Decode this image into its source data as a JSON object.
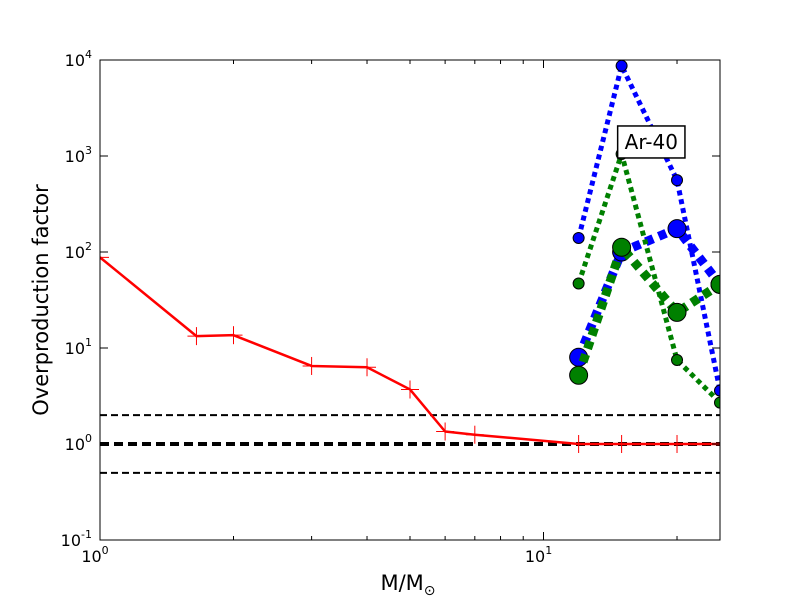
{
  "chart_data": {
    "type": "line",
    "x_scale": "log",
    "y_scale": "log",
    "xlim": [
      1,
      25
    ],
    "ylim": [
      0.1,
      10000
    ],
    "grid": false,
    "xlabel": "M/M",
    "xlabel_symbol": "⊙",
    "ylabel": "Overproduction factor",
    "x_ticks": [
      {
        "value": 1,
        "base": "10",
        "exp": "0"
      },
      {
        "value": 10,
        "base": "10",
        "exp": "1"
      }
    ],
    "y_ticks": [
      {
        "value": 0.1,
        "base": "10",
        "exp": "-1"
      },
      {
        "value": 1,
        "base": "10",
        "exp": "0"
      },
      {
        "value": 10,
        "base": "10",
        "exp": "1"
      },
      {
        "value": 100,
        "base": "10",
        "exp": "2"
      },
      {
        "value": 1000,
        "base": "10",
        "exp": "3"
      },
      {
        "value": 10000,
        "base": "10",
        "exp": "4"
      }
    ],
    "annotation": {
      "text": "Ar-40",
      "x": 17.5,
      "y": 1400
    },
    "reference_lines": [
      {
        "y": 2,
        "color": "#000000",
        "style": "dashed",
        "weight": "thin"
      },
      {
        "y": 1,
        "color": "#000000",
        "style": "dashed",
        "weight": "thick"
      },
      {
        "y": 0.5,
        "color": "#000000",
        "style": "dashed",
        "weight": "thin"
      }
    ],
    "series": [
      {
        "color": "#ff0000",
        "style": "solid",
        "marker": "plus",
        "weight": "medium",
        "x": [
          1,
          1.65,
          2,
          3,
          4,
          5,
          6,
          7,
          12,
          15,
          20,
          25
        ],
        "y": [
          88,
          13.3,
          13.6,
          6.5,
          6.3,
          3.7,
          1.35,
          1.25,
          1.0,
          1.0,
          1.0,
          1.0
        ]
      },
      {
        "color": "#0000ff",
        "style": "dotted",
        "marker": "circle",
        "weight": "medium",
        "x": [
          12,
          15,
          20,
          25
        ],
        "y": [
          140,
          8700,
          560,
          3.6
        ]
      },
      {
        "color": "#0000ff",
        "style": "dotted",
        "marker": "circle",
        "weight": "heavy",
        "x": [
          12,
          15,
          20,
          25
        ],
        "y": [
          8,
          100,
          175,
          46
        ]
      },
      {
        "color": "#008000",
        "style": "dotted",
        "marker": "circle",
        "weight": "medium",
        "x": [
          12,
          15,
          20,
          25
        ],
        "y": [
          47,
          1050,
          7.5,
          2.7
        ]
      },
      {
        "color": "#008000",
        "style": "dotted",
        "marker": "circle",
        "weight": "heavy",
        "x": [
          12,
          15,
          20,
          25
        ],
        "y": [
          5.2,
          112,
          23.5,
          46
        ]
      }
    ]
  }
}
